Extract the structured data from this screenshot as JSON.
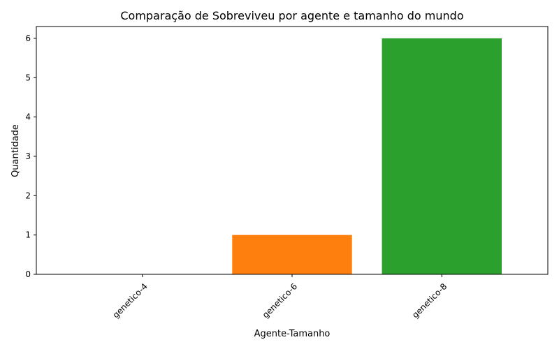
{
  "chart_data": {
    "type": "bar",
    "title": "Comparação de Sobreviveu por agente e tamanho do mundo",
    "xlabel": "Agente-Tamanho",
    "ylabel": "Quantidade",
    "categories": [
      "genetico-4",
      "genetico-6",
      "genetico-8"
    ],
    "values": [
      0,
      1,
      6
    ],
    "colors": [
      "#1f77b4",
      "#ff7f0e",
      "#2ca02c"
    ],
    "ylim": [
      0,
      6.3
    ],
    "yticks": [
      0,
      1,
      2,
      3,
      4,
      5,
      6
    ],
    "xtick_rotation": 45,
    "grid": false,
    "legend": "none"
  }
}
